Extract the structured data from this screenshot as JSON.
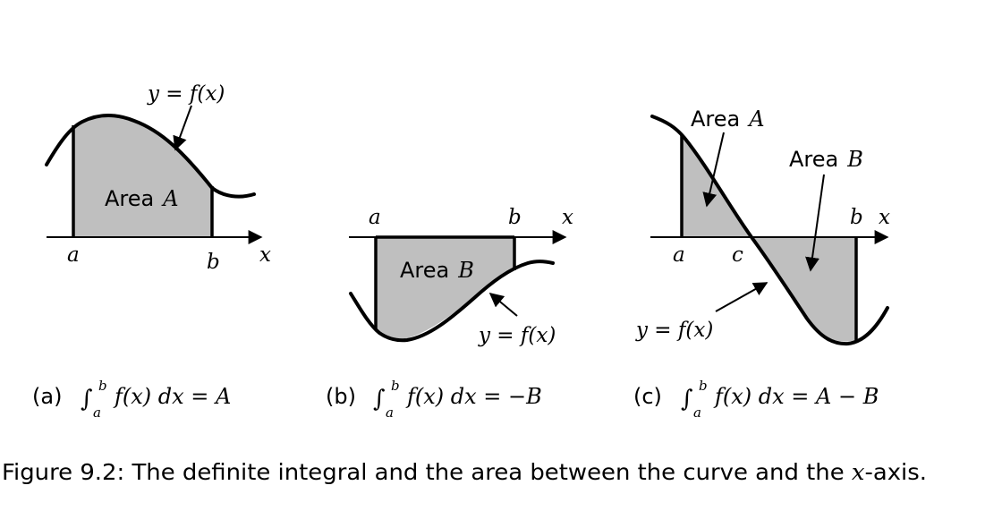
{
  "panels": [
    {
      "id": "a",
      "fx_label": "y = f(x)",
      "area_label_prefix": "Area",
      "area_label_var": "A",
      "tick_a": "a",
      "tick_b": "b",
      "axis_var": "x",
      "caption": {
        "tag": "(a)",
        "integral_sign": "∫",
        "upper": "b",
        "lower": "a",
        "integrand": "f(x) dx = ",
        "result": "A"
      }
    },
    {
      "id": "b",
      "fx_label": "y = f(x)",
      "area_label_prefix": "Area",
      "area_label_var": "B",
      "tick_a": "a",
      "tick_b": "b",
      "axis_var": "x",
      "caption": {
        "tag": "(b)",
        "integral_sign": "∫",
        "upper": "b",
        "lower": "a",
        "integrand": "f(x) dx = ",
        "result": "−B"
      }
    },
    {
      "id": "c",
      "fx_label": "y = f(x)",
      "area_a_prefix": "Area",
      "area_a_var": "A",
      "area_b_prefix": "Area",
      "area_b_var": "B",
      "tick_a": "a",
      "tick_c": "c",
      "tick_b": "b",
      "axis_var": "x",
      "caption": {
        "tag": "(c)",
        "integral_sign": "∫",
        "upper": "b",
        "lower": "a",
        "integrand": "f(x) dx = ",
        "result": "A − B"
      }
    }
  ],
  "figure_caption": {
    "prefix": "Figure 9.2: The definite integral and the area between the curve and the ",
    "var": "x",
    "suffix": "-axis."
  }
}
